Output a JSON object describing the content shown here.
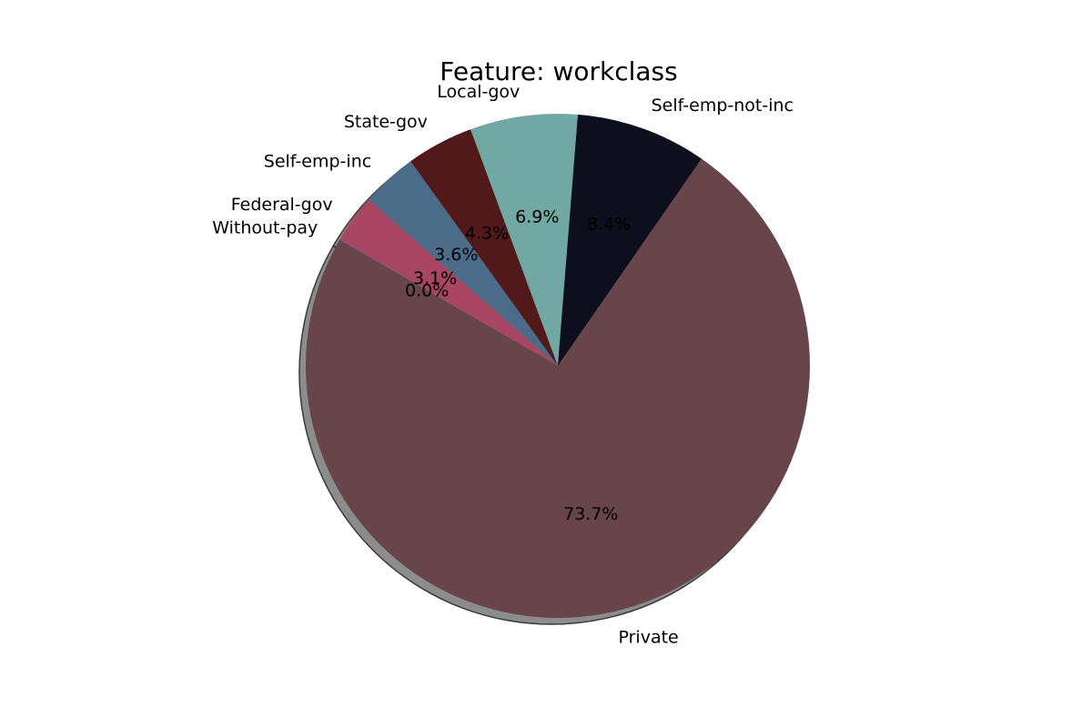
{
  "chart_data": {
    "type": "pie",
    "title": "Feature: workclass",
    "start_angle_deg": 150,
    "direction": "clockwise",
    "shadow": true,
    "slices": [
      {
        "label": "Without-pay",
        "value": 0.04,
        "pct_label": "0.0%",
        "color": "#6b5b95"
      },
      {
        "label": "Federal-gov",
        "value": 3.1,
        "pct_label": "3.1%",
        "color": "#a84563"
      },
      {
        "label": "Self-emp-inc",
        "value": 3.6,
        "pct_label": "3.6%",
        "color": "#4a6c88"
      },
      {
        "label": "State-gov",
        "value": 4.3,
        "pct_label": "4.3%",
        "color": "#511919"
      },
      {
        "label": "Local-gov",
        "value": 6.9,
        "pct_label": "6.9%",
        "color": "#72a8a4"
      },
      {
        "label": "Self-emp-not-inc",
        "value": 8.4,
        "pct_label": "8.4%",
        "color": "#0d0f1c"
      },
      {
        "label": "Private",
        "value": 73.7,
        "pct_label": "73.7%",
        "color": "#67454a"
      }
    ]
  }
}
